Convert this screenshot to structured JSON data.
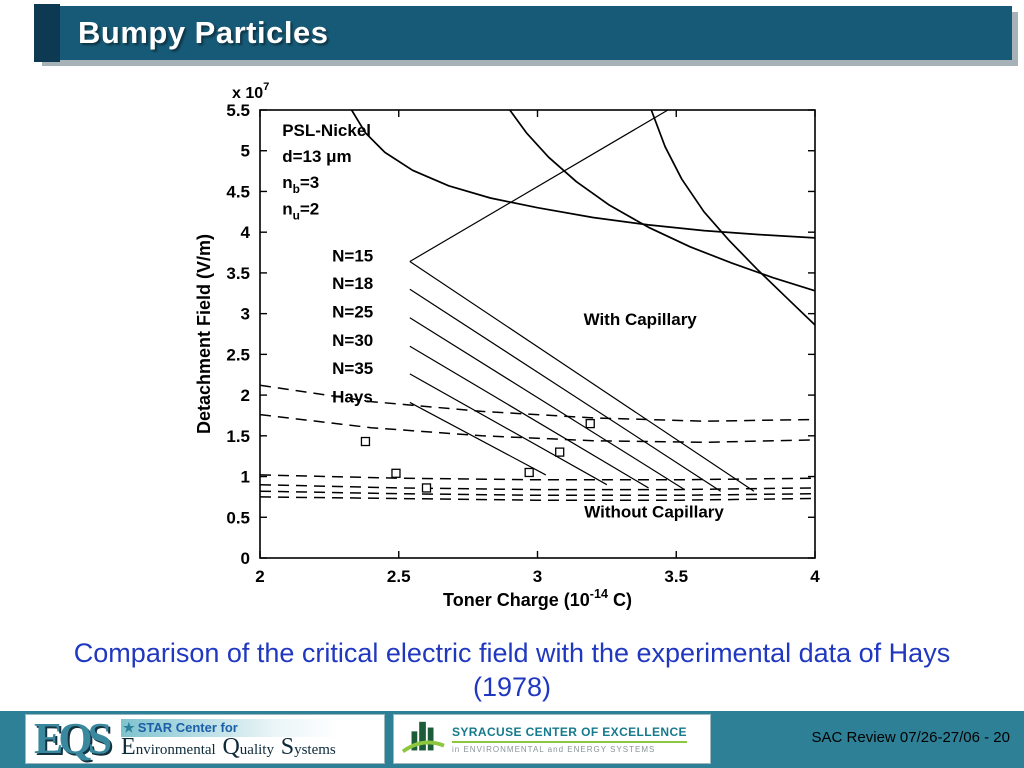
{
  "slide": {
    "title": "Bumpy Particles",
    "caption_line1": "Comparison of the critical electric field with the experimental data of Hays",
    "caption_line2": "(1978)",
    "footer_text": "SAC Review 07/26-27/06 - 20"
  },
  "logos": {
    "eqs": {
      "acronym": "EQS",
      "star_line": "STAR Center for",
      "words": [
        "Environmental",
        "Quality",
        "Systems"
      ]
    },
    "syracuse": {
      "line1": "SYRACUSE CENTER OF EXCELLENCE",
      "line2": "in ENVIRONMENTAL and ENERGY SYSTEMS"
    }
  },
  "colors": {
    "header_bar": "#175a77",
    "header_accent": "#0d3a52",
    "footer_band": "#2e8096",
    "caption_text": "#2038c0",
    "logo_green": "#8dc63f",
    "logo_dark_green": "#1c5c38",
    "coe_teal": "#157a8c",
    "eqs_teal": "#39889e"
  },
  "chart_data": {
    "type": "line",
    "title": "",
    "ylabel": "Detachment Field (V/m)",
    "xlabel_parts": [
      {
        "t": "Toner Charge (10"
      },
      {
        "t": "-14",
        "shift": "sup"
      },
      {
        "t": " C)"
      }
    ],
    "scale_note_parts": [
      {
        "t": "x 10"
      },
      {
        "t": "7",
        "shift": "sup"
      }
    ],
    "xlim": [
      2,
      4
    ],
    "ylim": [
      0,
      5.5
    ],
    "xticks": [
      "2",
      "2.5",
      "3",
      "3.5",
      "4"
    ],
    "yticks": [
      "0",
      "0.5",
      "1",
      "1.5",
      "2",
      "2.5",
      "3",
      "3.5",
      "4",
      "4.5",
      "5",
      "5.5"
    ],
    "grid": false,
    "info_annotations": [
      {
        "x": 2.08,
        "y": 5.18,
        "parts": [
          {
            "t": "PSL-Nickel"
          }
        ]
      },
      {
        "x": 2.08,
        "y": 4.86,
        "parts": [
          {
            "t": "d=13 μm"
          }
        ]
      },
      {
        "x": 2.08,
        "y": 4.54,
        "parts": [
          {
            "t": "n"
          },
          {
            "t": "b",
            "shift": "sub"
          },
          {
            "t": "=3"
          }
        ]
      },
      {
        "x": 2.08,
        "y": 4.22,
        "parts": [
          {
            "t": "n"
          },
          {
            "t": "u",
            "shift": "sub"
          },
          {
            "t": "=2"
          }
        ]
      }
    ],
    "region_labels": [
      {
        "x": 3.37,
        "y": 2.86,
        "text": "With Capillary",
        "anchor": "middle"
      },
      {
        "x": 3.42,
        "y": 0.5,
        "text": "Without Capillary",
        "anchor": "middle"
      }
    ],
    "line_labels": [
      {
        "x": 2.26,
        "y": 3.64,
        "text": "N=15"
      },
      {
        "x": 2.26,
        "y": 3.3,
        "text": "N=18"
      },
      {
        "x": 2.26,
        "y": 2.95,
        "text": "N=25"
      },
      {
        "x": 2.26,
        "y": 2.6,
        "text": "N=30"
      },
      {
        "x": 2.26,
        "y": 2.26,
        "text": "N=35"
      },
      {
        "x": 2.26,
        "y": 1.91,
        "text": "Hays"
      }
    ],
    "solid_curves": [
      [
        [
          2.33,
          5.5
        ],
        [
          2.38,
          5.22
        ],
        [
          2.45,
          4.98
        ],
        [
          2.55,
          4.76
        ],
        [
          2.68,
          4.57
        ],
        [
          2.83,
          4.42
        ],
        [
          3.0,
          4.3
        ],
        [
          3.2,
          4.18
        ],
        [
          3.4,
          4.09
        ],
        [
          3.6,
          4.02
        ],
        [
          3.8,
          3.97
        ],
        [
          4,
          3.93
        ]
      ],
      [
        [
          2.9,
          5.5
        ],
        [
          2.96,
          5.22
        ],
        [
          3.04,
          4.92
        ],
        [
          3.14,
          4.62
        ],
        [
          3.26,
          4.33
        ],
        [
          3.4,
          4.06
        ],
        [
          3.55,
          3.82
        ],
        [
          3.7,
          3.62
        ],
        [
          3.85,
          3.44
        ],
        [
          4,
          3.28
        ]
      ],
      [
        [
          3.41,
          5.5
        ],
        [
          3.46,
          5.05
        ],
        [
          3.52,
          4.65
        ],
        [
          3.6,
          4.25
        ],
        [
          3.69,
          3.9
        ],
        [
          3.79,
          3.55
        ],
        [
          3.89,
          3.22
        ],
        [
          4,
          2.86
        ]
      ]
    ],
    "dashed_curves": [
      [
        [
          2,
          2.12
        ],
        [
          2.4,
          1.92
        ],
        [
          2.8,
          1.8
        ],
        [
          3.2,
          1.72
        ],
        [
          3.6,
          1.68
        ],
        [
          4,
          1.7
        ]
      ],
      [
        [
          2,
          1.76
        ],
        [
          2.4,
          1.6
        ],
        [
          2.8,
          1.5
        ],
        [
          3.2,
          1.44
        ],
        [
          3.6,
          1.42
        ],
        [
          4,
          1.45
        ]
      ],
      [
        [
          2,
          1.02
        ],
        [
          2.5,
          0.98
        ],
        [
          3,
          0.96
        ],
        [
          3.5,
          0.96
        ],
        [
          4,
          0.98
        ]
      ],
      [
        [
          2,
          0.9
        ],
        [
          2.5,
          0.86
        ],
        [
          3,
          0.84
        ],
        [
          3.5,
          0.84
        ],
        [
          4,
          0.86
        ]
      ],
      [
        [
          2,
          0.82
        ],
        [
          2.5,
          0.79
        ],
        [
          3,
          0.77
        ],
        [
          3.5,
          0.77
        ],
        [
          4,
          0.79
        ]
      ],
      [
        [
          2,
          0.75
        ],
        [
          2.5,
          0.73
        ],
        [
          3,
          0.71
        ],
        [
          3.5,
          0.71
        ],
        [
          4,
          0.73
        ]
      ]
    ],
    "line_segments": [
      [
        2.54,
        3.64,
        3.78,
        0.82
      ],
      [
        2.54,
        3.3,
        3.66,
        0.82
      ],
      [
        2.54,
        2.95,
        3.53,
        0.84
      ],
      [
        2.54,
        2.6,
        3.4,
        0.86
      ],
      [
        2.54,
        2.26,
        3.25,
        0.9
      ],
      [
        2.54,
        1.91,
        3.03,
        1.02
      ],
      [
        2.54,
        3.64,
        3.47,
        5.5
      ]
    ],
    "scatter_squares": [
      [
        2.38,
        1.43
      ],
      [
        2.49,
        1.04
      ],
      [
        2.6,
        0.86
      ],
      [
        2.97,
        1.05
      ],
      [
        3.08,
        1.3
      ],
      [
        3.19,
        1.65
      ]
    ],
    "series_names": {
      "solid": "With Capillary",
      "dashed": "Without Capillary",
      "squares": "Hays (1978) experimental data"
    }
  }
}
